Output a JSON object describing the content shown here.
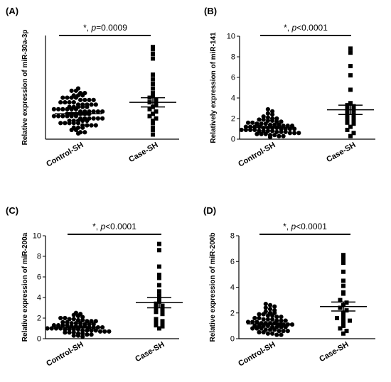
{
  "chart_data": [
    {
      "panel_label": "(A)",
      "type": "scatter",
      "ylabel": "Relative expression of miR-30a-3p",
      "categories": [
        "Control-SH",
        "Case-SH"
      ],
      "ylim": [
        0,
        4.5
      ],
      "yticks": [],
      "annotation": {
        "prefix": "*, ",
        "italic": "p",
        "suffix": "=0.0009"
      },
      "marker_shapes": [
        "circle",
        "square"
      ],
      "groups": [
        {
          "name": "Control-SH",
          "mean": 1.1,
          "sem": 0.05,
          "values": [
            2.2,
            2.1,
            2.1,
            2.0,
            2.0,
            1.9,
            1.9,
            1.9,
            1.8,
            1.8,
            1.8,
            1.8,
            1.7,
            1.7,
            1.7,
            1.7,
            1.6,
            1.6,
            1.6,
            1.6,
            1.5,
            1.5,
            1.5,
            1.5,
            1.5,
            1.4,
            1.4,
            1.4,
            1.4,
            1.4,
            1.3,
            1.3,
            1.3,
            1.3,
            1.3,
            1.3,
            1.2,
            1.2,
            1.2,
            1.2,
            1.2,
            1.2,
            1.1,
            1.1,
            1.1,
            1.1,
            1.1,
            1.1,
            1.0,
            1.0,
            1.0,
            1.0,
            1.0,
            1.0,
            0.9,
            0.9,
            0.9,
            0.9,
            0.9,
            0.9,
            0.8,
            0.8,
            0.8,
            0.8,
            0.8,
            0.7,
            0.7,
            0.7,
            0.7,
            0.7,
            0.6,
            0.6,
            0.6,
            0.6,
            0.5,
            0.5,
            0.5,
            0.4,
            0.4,
            0.3,
            0.3,
            0.25
          ]
        },
        {
          "name": "Case-SH",
          "mean": 1.6,
          "sem": 0.2,
          "values": [
            4.0,
            3.9,
            3.7,
            3.5,
            2.8,
            2.6,
            2.4,
            2.2,
            2.0,
            1.9,
            1.8,
            1.7,
            1.6,
            1.5,
            1.4,
            1.3,
            1.2,
            1.1,
            1.0,
            0.9,
            0.8,
            0.7,
            0.5,
            0.4,
            0.2
          ]
        }
      ]
    },
    {
      "panel_label": "(B)",
      "type": "scatter",
      "ylabel": "Relatively expression of miR-141",
      "categories": [
        "Control-SH",
        "Case-SH"
      ],
      "ylim": [
        0,
        10
      ],
      "yticks": [
        0,
        2,
        4,
        6,
        8,
        10
      ],
      "annotation": {
        "prefix": "*, ",
        "italic": "p",
        "suffix": "<0.0001"
      },
      "marker_shapes": [
        "circle",
        "square"
      ],
      "groups": [
        {
          "name": "Control-SH",
          "mean": 1.15,
          "sem": 0.08,
          "values": [
            2.9,
            2.7,
            2.5,
            2.4,
            2.2,
            2.1,
            2.0,
            2.0,
            1.9,
            1.9,
            1.8,
            1.8,
            1.7,
            1.7,
            1.6,
            1.6,
            1.5,
            1.5,
            1.5,
            1.4,
            1.4,
            1.4,
            1.3,
            1.3,
            1.3,
            1.2,
            1.2,
            1.2,
            1.2,
            1.1,
            1.1,
            1.1,
            1.1,
            1.0,
            1.0,
            1.0,
            1.0,
            0.9,
            0.9,
            0.9,
            0.9,
            0.8,
            0.8,
            0.8,
            0.8,
            0.7,
            0.7,
            0.7,
            0.6,
            0.6,
            0.6,
            0.5,
            0.5,
            0.5,
            0.4,
            0.4,
            0.3,
            0.3,
            0.2
          ]
        },
        {
          "name": "Case-SH",
          "mean": 2.85,
          "sem": 0.45,
          "values": [
            8.8,
            8.4,
            7.1,
            6.2,
            4.8,
            3.5,
            3.3,
            3.2,
            3.0,
            2.8,
            2.6,
            2.4,
            2.2,
            2.0,
            1.9,
            1.8,
            1.6,
            1.5,
            1.2,
            0.9,
            0.6,
            0.3
          ]
        }
      ]
    },
    {
      "panel_label": "(C)",
      "type": "scatter",
      "ylabel": "Relative expression of miR-200a",
      "categories": [
        "Control-SH",
        "Case-SH"
      ],
      "ylim": [
        0,
        10
      ],
      "yticks": [
        0,
        2,
        4,
        6,
        8,
        10
      ],
      "annotation": {
        "prefix": "*, ",
        "italic": "p",
        "suffix": "<0.0001"
      },
      "marker_shapes": [
        "circle",
        "square"
      ],
      "groups": [
        {
          "name": "Control-SH",
          "mean": 1.1,
          "sem": 0.06,
          "values": [
            2.5,
            2.4,
            2.3,
            2.2,
            2.1,
            2.0,
            2.0,
            1.9,
            1.9,
            1.8,
            1.8,
            1.7,
            1.7,
            1.7,
            1.6,
            1.6,
            1.5,
            1.5,
            1.5,
            1.4,
            1.4,
            1.4,
            1.3,
            1.3,
            1.3,
            1.3,
            1.2,
            1.2,
            1.2,
            1.2,
            1.1,
            1.1,
            1.1,
            1.1,
            1.0,
            1.0,
            1.0,
            1.0,
            0.9,
            0.9,
            0.9,
            0.9,
            0.8,
            0.8,
            0.8,
            0.8,
            0.7,
            0.7,
            0.7,
            0.6,
            0.6,
            0.6,
            0.5,
            0.5,
            0.4,
            0.4,
            0.3,
            0.3,
            0.2
          ]
        },
        {
          "name": "Case-SH",
          "mean": 3.5,
          "sem": 0.5,
          "values": [
            9.2,
            8.6,
            7.0,
            6.2,
            5.9,
            5.2,
            4.6,
            4.2,
            3.9,
            3.6,
            3.4,
            3.2,
            3.0,
            2.8,
            2.6,
            2.4,
            1.9,
            1.7,
            1.6,
            1.5,
            1.3,
            1.2,
            1.0
          ]
        }
      ]
    },
    {
      "panel_label": "(D)",
      "type": "scatter",
      "ylabel": "Relative expression of miR-200b",
      "categories": [
        "Control-SH",
        "Case-SH"
      ],
      "ylim": [
        0,
        8
      ],
      "yticks": [
        0,
        2,
        4,
        6,
        8
      ],
      "annotation": {
        "prefix": "*, ",
        "italic": "p",
        "suffix": "<0.0001"
      },
      "marker_shapes": [
        "circle",
        "square"
      ],
      "groups": [
        {
          "name": "Control-SH",
          "mean": 1.15,
          "sem": 0.06,
          "values": [
            2.7,
            2.6,
            2.5,
            2.4,
            2.3,
            2.2,
            2.1,
            2.0,
            2.0,
            1.9,
            1.9,
            1.8,
            1.8,
            1.7,
            1.7,
            1.6,
            1.6,
            1.5,
            1.5,
            1.5,
            1.4,
            1.4,
            1.4,
            1.3,
            1.3,
            1.3,
            1.2,
            1.2,
            1.2,
            1.2,
            1.1,
            1.1,
            1.1,
            1.1,
            1.0,
            1.0,
            1.0,
            1.0,
            0.9,
            0.9,
            0.9,
            0.9,
            0.8,
            0.8,
            0.8,
            0.7,
            0.7,
            0.7,
            0.6,
            0.6,
            0.6,
            0.5,
            0.5,
            0.4,
            0.4,
            0.3,
            0.3
          ]
        },
        {
          "name": "Case-SH",
          "mean": 2.5,
          "sem": 0.35,
          "values": [
            6.5,
            6.2,
            5.9,
            5.2,
            4.5,
            4.1,
            3.6,
            3.5,
            3.0,
            2.8,
            2.6,
            2.4,
            2.2,
            2.0,
            1.8,
            1.6,
            1.5,
            1.4,
            1.2,
            1.0,
            0.8,
            0.6,
            0.4
          ]
        }
      ]
    }
  ]
}
